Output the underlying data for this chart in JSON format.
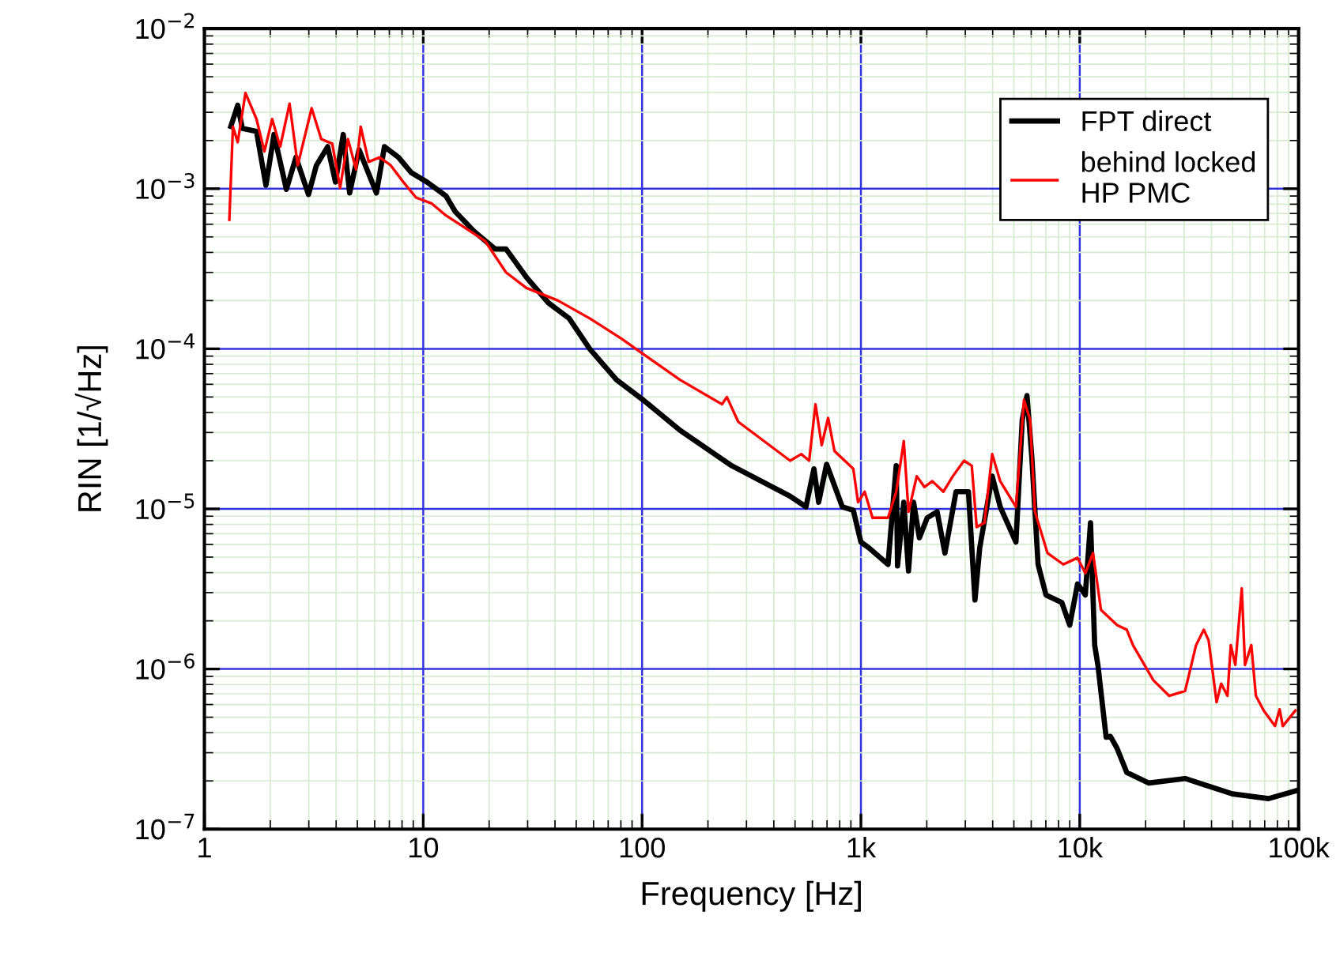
{
  "chart_data": {
    "type": "line",
    "xlabel": "Frequency [Hz]",
    "ylabel": "RIN [1/√Hz]",
    "log": "xy",
    "xlim": [
      1,
      100000
    ],
    "ylim": [
      1e-07,
      0.01
    ],
    "xticks": [
      1,
      10,
      100,
      {
        "value": 1000,
        "label": "1k"
      },
      {
        "value": 10000,
        "label": "10k"
      },
      {
        "value": 100000,
        "label": "100k"
      }
    ],
    "yticks": [
      {
        "value": 1e-07,
        "label": "10$^{−7}$"
      },
      {
        "value": 1e-06,
        "label": "10$^{−6}$"
      },
      {
        "value": 1e-05,
        "label": "10$^{−5}$"
      },
      {
        "value": 0.0001,
        "label": "10$^{−4}$"
      },
      {
        "value": 0.001,
        "label": "10$^{−3}$"
      },
      {
        "value": 0.01,
        "label": "10$^{−2}$"
      }
    ],
    "grid": true,
    "legend": "top right",
    "line_style": "solid",
    "marker": "none",
    "series": [
      {
        "name": "FPT direct",
        "color": "#000000",
        "x": [
          1.32,
          1.42,
          1.49,
          1.73,
          1.91,
          2.08,
          2.37,
          2.62,
          2.99,
          3.25,
          3.66,
          3.97,
          4.31,
          4.61,
          5.09,
          6.11,
          6.65,
          7.71,
          8.81,
          10.4,
          12.7,
          14.0,
          17.1,
          21.3,
          23.9,
          29.6,
          37.4,
          46.4,
          57.6,
          76.4,
          101,
          149,
          257,
          475,
          561,
          610,
          641,
          697,
          822,
          923,
          1000,
          1090,
          1330,
          1450,
          1470,
          1570,
          1650,
          1740,
          1850,
          2010,
          2230,
          2420,
          2720,
          3100,
          3320,
          3490,
          3980,
          4330,
          5110,
          5460,
          5740,
          6040,
          6450,
          7010,
          8280,
          9000,
          9770,
          10600,
          11200,
          11700,
          12100,
          13200,
          13800,
          14800,
          16400,
          20700,
          30300,
          49800,
          72900,
          96700
        ],
        "values": [
          0.00245,
          0.00332,
          0.00238,
          0.00228,
          0.00105,
          0.00218,
          0.00099,
          0.00157,
          0.00092,
          0.0014,
          0.00183,
          0.0011,
          0.00218,
          0.00094,
          0.00175,
          0.00094,
          0.00183,
          0.00157,
          0.00126,
          0.0011,
          0.0009,
          0.00072,
          0.00054,
          0.00042,
          0.00042,
          0.00028,
          0.000193,
          0.000155,
          0.0001,
          6.4e-05,
          4.8e-05,
          3.1e-05,
          1.86e-05,
          1.2e-05,
          1.03e-05,
          1.78e-05,
          1.1e-05,
          1.9e-05,
          1.03e-05,
          9.8e-06,
          6.2e-06,
          5.7e-06,
          4.5e-06,
          1.86e-05,
          4.4e-06,
          1.1e-05,
          4.1e-06,
          1.1e-05,
          6.6e-06,
          8.8e-06,
          9.6e-06,
          5.3e-06,
          1.28e-05,
          1.28e-05,
          2.7e-06,
          5.7e-06,
          1.6e-05,
          1.03e-05,
          6.2e-06,
          3.6e-05,
          5.1e-05,
          2.1e-05,
          4.5e-06,
          2.9e-06,
          2.6e-06,
          1.88e-06,
          3.4e-06,
          2.9e-06,
          8.2e-06,
          1.41e-06,
          1.06e-06,
          3.75e-07,
          3.8e-07,
          3.2e-07,
          2.26e-07,
          1.94e-07,
          2.07e-07,
          1.66e-07,
          1.55e-07,
          1.73e-07
        ]
      },
      {
        "name": "behind locked\nHP PMC",
        "color": "#ff0000",
        "x": [
          1.3,
          1.35,
          1.42,
          1.54,
          1.73,
          1.88,
          2.04,
          2.22,
          2.45,
          2.67,
          3.09,
          3.42,
          3.84,
          4.17,
          4.53,
          4.93,
          5.18,
          5.63,
          6.32,
          7.1,
          8.11,
          9.27,
          10.9,
          12.7,
          15.2,
          19.2,
          23.9,
          29.6,
          41.3,
          57.6,
          80.3,
          101,
          149,
          232,
          244,
          275,
          475,
          534,
          580,
          620,
          662,
          708,
          757,
          923,
          970,
          1040,
          1130,
          1330,
          1450,
          1570,
          1650,
          1800,
          1950,
          2120,
          2380,
          2630,
          2960,
          3210,
          3380,
          3670,
          3980,
          4330,
          5110,
          5560,
          5930,
          6240,
          7120,
          8410,
          9770,
          10600,
          11500,
          12500,
          14800,
          16400,
          17500,
          21700,
          25600,
          30300,
          34000,
          36900,
          38800,
          42200,
          44300,
          47300,
          49000,
          51400,
          55000,
          56900,
          60800,
          63800,
          69300,
          78000,
          81900,
          84700,
          96700
        ],
        "values": [
          0.00064,
          0.00244,
          0.00195,
          0.00396,
          0.00272,
          0.00171,
          0.00272,
          0.00183,
          0.0034,
          0.0014,
          0.00318,
          0.00204,
          0.00191,
          0.00101,
          0.00204,
          0.00132,
          0.00244,
          0.00147,
          0.00157,
          0.0014,
          0.0011,
          0.00088,
          0.00081,
          0.00068,
          0.00058,
          0.00047,
          0.0003,
          0.00024,
          0.0002,
          0.000155,
          0.000116,
          9.3e-05,
          6.4e-05,
          4.5e-05,
          5e-05,
          3.5e-05,
          2e-05,
          2.2e-05,
          2e-05,
          4.5e-05,
          2.5e-05,
          3.7e-05,
          2.3e-05,
          1.78e-05,
          1.1e-05,
          1.28e-05,
          8.8e-06,
          8.8e-06,
          1.28e-05,
          2.65e-05,
          9.6e-06,
          1.6e-05,
          1.37e-05,
          1.49e-05,
          1.28e-05,
          1.6e-05,
          2e-05,
          1.86e-05,
          7.7e-06,
          8.2e-06,
          2.2e-05,
          1.49e-05,
          1.03e-05,
          4.8e-05,
          3.6e-05,
          9.6e-06,
          5.3e-06,
          4.5e-06,
          4.95e-06,
          3.97e-06,
          5.3e-06,
          2.34e-06,
          1.88e-06,
          1.76e-06,
          1.41e-06,
          8.5e-07,
          6.8e-07,
          7.3e-07,
          1.41e-06,
          1.76e-06,
          1.51e-06,
          6.2e-07,
          8.1e-07,
          6.8e-07,
          1.41e-06,
          1.06e-06,
          3.19e-06,
          1.06e-06,
          1.41e-06,
          6.8e-07,
          5.5e-07,
          4.4e-07,
          5.6e-07,
          4.4e-07,
          5.5e-07
        ]
      }
    ]
  }
}
